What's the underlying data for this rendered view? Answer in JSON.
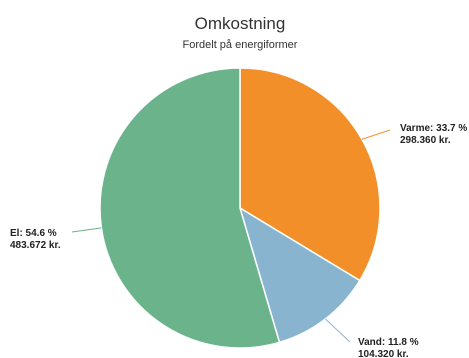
{
  "chart_data": {
    "type": "pie",
    "title": "Omkostning",
    "subtitle": "Fordelt på energiformer",
    "slices": [
      {
        "label": "Varme",
        "percent": 33.7,
        "value": 298360,
        "percent_text": "Varme: 33.7 %",
        "value_text": "298.360 kr.",
        "color": "#f28f29"
      },
      {
        "label": "Vand",
        "percent": 11.8,
        "value": 104320,
        "percent_text": "Vand: 11.8 %",
        "value_text": "104.320 kr.",
        "color": "#88b4cf"
      },
      {
        "label": "El",
        "percent": 54.6,
        "value": 483672,
        "percent_text": "El: 54.6 %",
        "value_text": "483.672 kr.",
        "color": "#6bb38a"
      }
    ],
    "start_angle": "12 o'clock",
    "direction": "clockwise",
    "legend": "none"
  }
}
